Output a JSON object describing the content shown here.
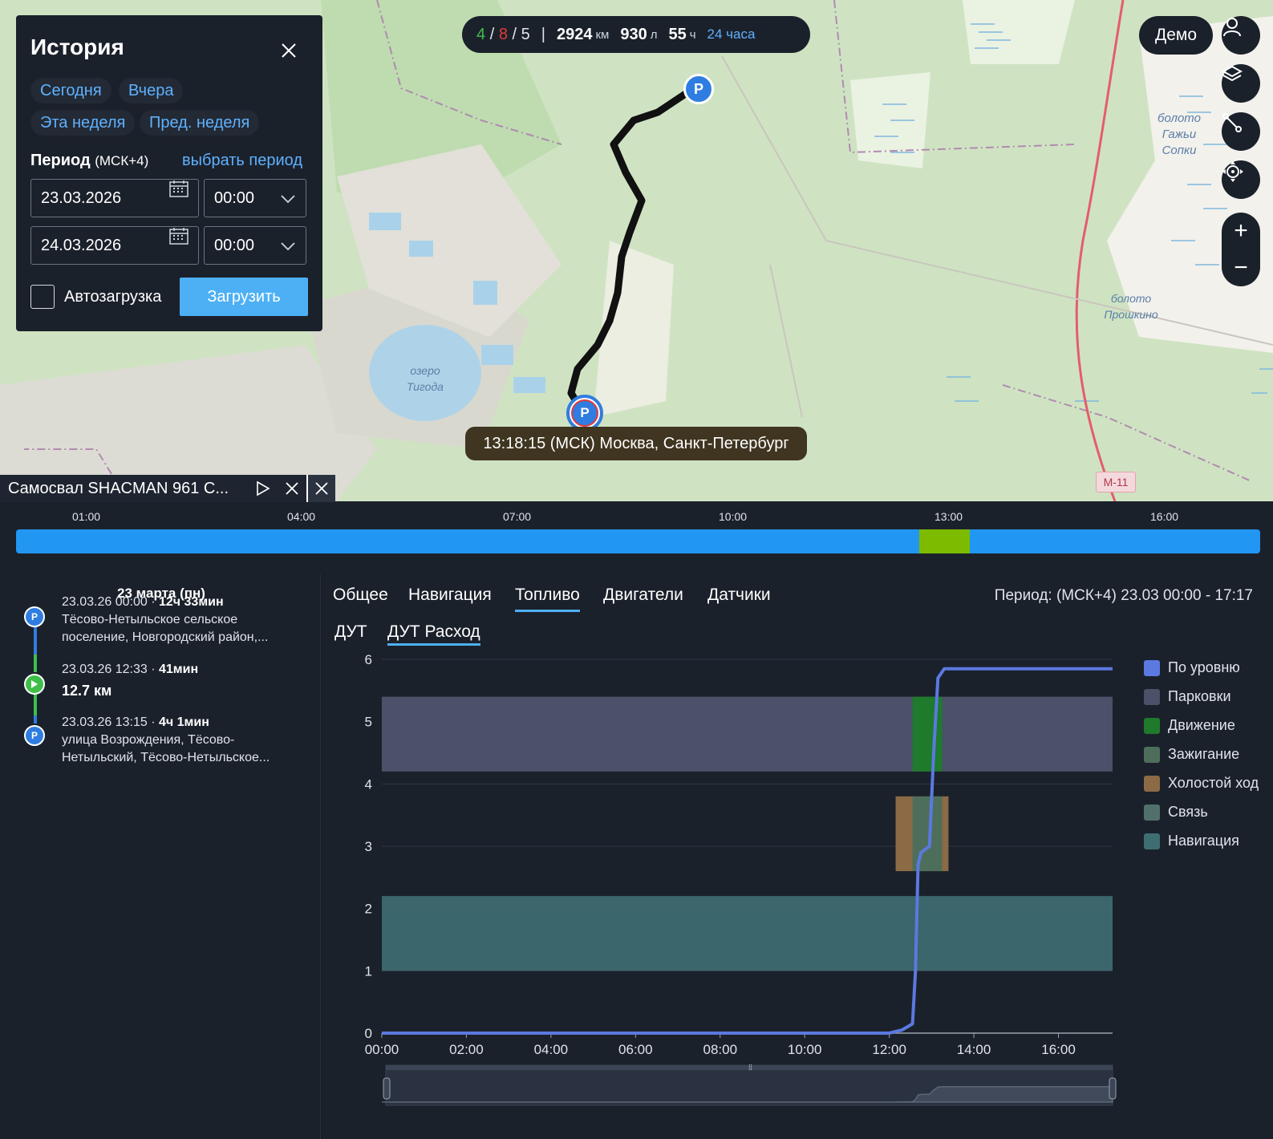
{
  "map": {
    "labels": [
      "болото\nГажьи\nСопки",
      "болото\nПрошкино",
      "озеро\nТигода",
      "М-11"
    ],
    "tooltip": "13:18:15 (МСК) Москва, Санкт-Петербург",
    "parking_marker": "P"
  },
  "stats": {
    "green": "4",
    "sep1": "/",
    "red": "8",
    "sep2": "/",
    "white": "5",
    "divider": "|",
    "distance": "2924",
    "distance_unit": "км",
    "fuel": "930",
    "fuel_unit": "л",
    "hours": "55",
    "hours_unit": "ч",
    "range_link": "24 часа"
  },
  "header": {
    "user": "Демо"
  },
  "history": {
    "title": "История",
    "chips": [
      "Сегодня",
      "Вчера",
      "Эта неделя",
      "Пред. неделя"
    ],
    "period_label": "Период",
    "period_tz": "(МСК+4)",
    "choose_period": "выбрать период",
    "from_date": "23.03.2026",
    "from_time": "00:00",
    "to_date": "24.03.2026",
    "to_time": "00:00",
    "autoload": "Автозагрузка",
    "load_button": "Загрузить"
  },
  "vehicle_tab": {
    "name": "Самосвал SHACMAN 961 С..."
  },
  "timeline": {
    "ticks": [
      "01:00",
      "04:00",
      "07:00",
      "10:00",
      "13:00",
      "16:00"
    ],
    "movement_range": [
      12.55,
      13.25
    ],
    "start_hour": 0,
    "end_hour": 17.28
  },
  "events": {
    "day": "23 марта (пн)",
    "items": [
      {
        "type": "P",
        "time": "23.03.26 00:00 · ",
        "duration": "12ч 33мин",
        "line1": "Тёсово-Нетыльское сельское",
        "line2": "поселение, Новгородский район,..."
      },
      {
        "type": "move",
        "time": "23.03.26 12:33 · ",
        "duration": "41мин",
        "line1": "12.7 км",
        "line2": ""
      },
      {
        "type": "P",
        "time": "23.03.26 13:15 · ",
        "duration": "4ч 1мин",
        "line1": "улица Возрождения, Тёсово-",
        "line2": "Нетыльский, Тёсово-Нетыльское..."
      }
    ]
  },
  "tabs": [
    "Общее",
    "Навигация",
    "Топливо",
    "Двигатели",
    "Датчики"
  ],
  "active_tab": "Топливо",
  "subtabs": [
    "ДУТ",
    "ДУТ Расход"
  ],
  "period_text": "Период: (МСК+4) 23.03 00:00 - 17:17",
  "colors": {
    "level": "#5b79e0",
    "parking": "#4a5168",
    "movement": "#1f7a2c",
    "ignition": "#4e6e5c",
    "idle": "#8b6a45",
    "connection": "#51706c",
    "navigation": "#3f6e72",
    "accent": "#4db0f5"
  },
  "chart_data": {
    "type": "line",
    "x_unit": "hours",
    "xlim": [
      0,
      17.28
    ],
    "ylim": [
      0,
      6
    ],
    "x_ticks": [
      "00:00",
      "02:00",
      "04:00",
      "06:00",
      "08:00",
      "10:00",
      "12:00",
      "14:00",
      "16:00"
    ],
    "y_ticks": [
      "0",
      "1",
      "2",
      "3",
      "4",
      "5",
      "6"
    ],
    "series": [
      {
        "name": "По уровню",
        "x": [
          0,
          12.0,
          12.3,
          12.55,
          12.62,
          12.68,
          12.75,
          12.95,
          13.05,
          13.15,
          13.3,
          17.28
        ],
        "y": [
          0,
          0,
          0.05,
          0.15,
          1.0,
          2.7,
          2.9,
          3.0,
          4.5,
          5.7,
          5.85,
          5.85
        ]
      }
    ],
    "bands": [
      {
        "name": "Парковки",
        "x0": 0,
        "x1": 17.28,
        "y0": 4.2,
        "y1": 5.4
      },
      {
        "name": "Движение",
        "x0": 12.55,
        "x1": 13.25,
        "y0": 4.2,
        "y1": 5.4
      },
      {
        "name": "Холостой ход",
        "x0": 12.15,
        "x1": 13.4,
        "y0": 2.6,
        "y1": 3.8
      },
      {
        "name": "Зажигание",
        "x0": 12.55,
        "x1": 13.25,
        "y0": 2.6,
        "y1": 3.8
      },
      {
        "name": "Навигация",
        "x0": 0,
        "x1": 17.28,
        "y0": 1.0,
        "y1": 2.2
      }
    ],
    "legend": [
      "По уровню",
      "Парковки",
      "Движение",
      "Зажигание",
      "Холостой ход",
      "Связь",
      "Навигация"
    ],
    "legend_position": "right"
  }
}
